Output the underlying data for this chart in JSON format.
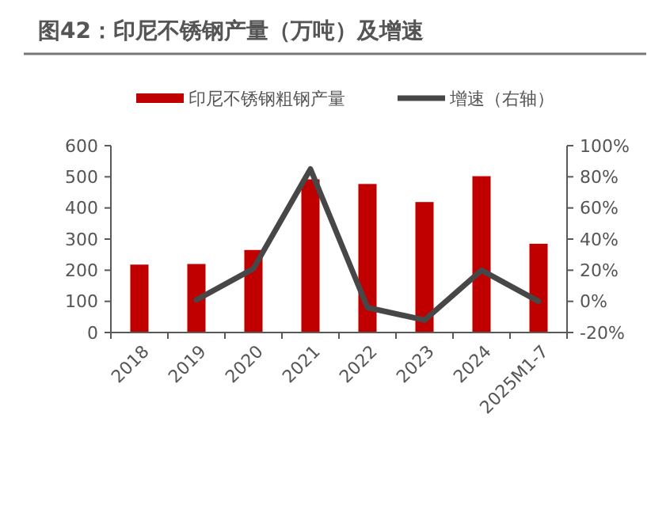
{
  "chart_data": {
    "type": "bar",
    "title": "图42：印尼不锈钢产量（万吨）及增速",
    "categories": [
      "2018",
      "2019",
      "2020",
      "2021",
      "2022",
      "2023",
      "2024",
      "2025M1-7"
    ],
    "series": [
      {
        "name": "印尼不锈钢粗钢产量",
        "color": "#c00000",
        "values": [
          218,
          220,
          265,
          492,
          477,
          419,
          502,
          285
        ]
      },
      {
        "name": "增速（右轴）",
        "type": "line",
        "axis": "y2",
        "color": "#474747",
        "values": [
          null,
          1,
          21,
          85,
          -4,
          -12,
          20,
          0
        ]
      }
    ],
    "ylim": [
      0,
      600
    ],
    "yticks": [
      0,
      100,
      200,
      300,
      400,
      500,
      600
    ],
    "y2lim": [
      -20,
      100
    ],
    "y2ticks": [
      {
        "value": -20,
        "label": "-20%"
      },
      {
        "value": 0,
        "label": "0%"
      },
      {
        "value": 20,
        "label": "20%"
      },
      {
        "value": 40,
        "label": "40%"
      },
      {
        "value": 60,
        "label": "60%"
      },
      {
        "value": 80,
        "label": "80%"
      },
      {
        "value": 100,
        "label": "100%"
      }
    ],
    "legend": "top",
    "grid": false,
    "marker": "none",
    "line_style": "solid"
  }
}
